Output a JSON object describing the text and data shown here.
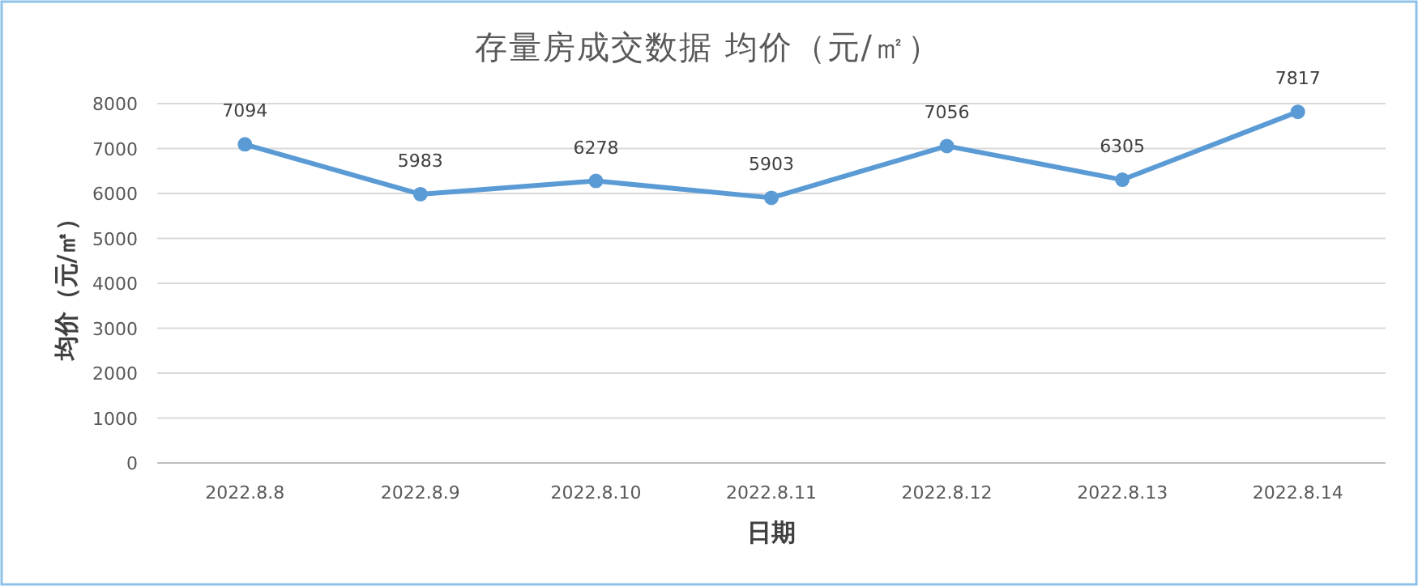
{
  "chart_data": {
    "type": "line",
    "title": "存量房成交数据 均价（元/㎡）",
    "xlabel": "日期",
    "ylabel": "均价（元/㎡）",
    "categories": [
      "2022.8.8",
      "2022.8.9",
      "2022.8.10",
      "2022.8.11",
      "2022.8.12",
      "2022.8.13",
      "2022.8.14"
    ],
    "values": [
      7094,
      5983,
      6278,
      5903,
      7056,
      6305,
      7817
    ],
    "color": "#5b9bd5",
    "ylim": [
      0,
      8000
    ],
    "yticks": [
      0,
      1000,
      2000,
      3000,
      4000,
      5000,
      6000,
      7000,
      8000
    ],
    "grid": "y",
    "marker": "circle",
    "data_labels": true
  }
}
